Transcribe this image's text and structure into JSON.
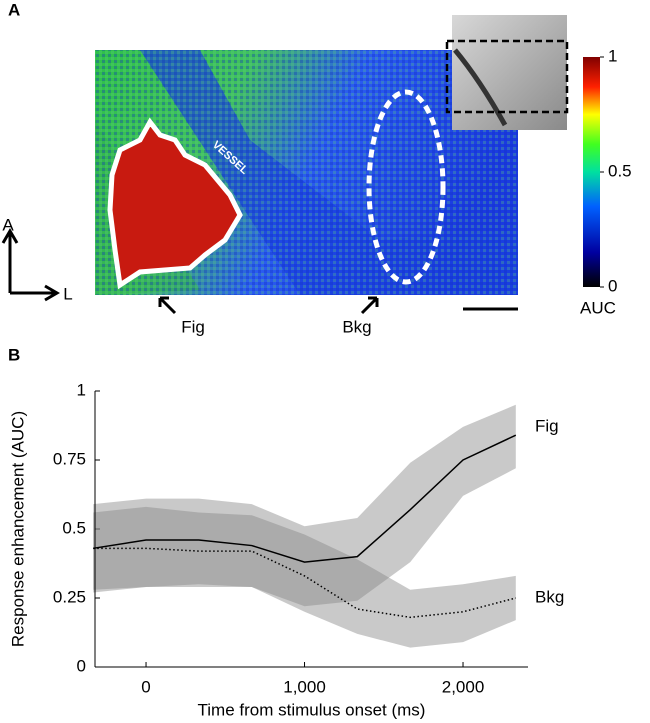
{
  "panel_labels": [
    "A",
    "B"
  ],
  "map": {
    "vessel_label": "VESSEL",
    "orientation": [
      "A",
      "L"
    ],
    "roi_labels": [
      "Fig",
      "Bkg"
    ],
    "colorbar": {
      "label": "AUC",
      "ticks": [
        0,
        0.5,
        1
      ],
      "lim": [
        0,
        1
      ]
    }
  },
  "chart_data": {
    "type": "line",
    "xlabel": "Time from stimulus onset (ms)",
    "ylabel": "Response enhancement (AUC)",
    "x": [
      -333,
      0,
      333,
      667,
      1000,
      1333,
      1667,
      2000,
      2333
    ],
    "xlim": [
      -322,
      2410
    ],
    "xticks": [
      0,
      {
        "value": 1000,
        "label": "1,000"
      },
      {
        "value": 2000,
        "label": "2,000"
      }
    ],
    "ylim": [
      0,
      1
    ],
    "yticks": [
      0,
      0.25,
      0.5,
      0.75,
      1
    ],
    "series": [
      {
        "name": "Fig",
        "color": "#000000",
        "dash": "solid",
        "values": [
          0.43,
          0.46,
          0.46,
          0.44,
          0.38,
          0.4,
          0.57,
          0.75,
          0.84
        ],
        "upper": [
          0.59,
          0.61,
          0.61,
          0.59,
          0.51,
          0.54,
          0.74,
          0.87,
          0.95
        ],
        "lower": [
          0.27,
          0.29,
          0.29,
          0.29,
          0.22,
          0.24,
          0.38,
          0.62,
          0.72
        ]
      },
      {
        "name": "Bkg",
        "color": "#000000",
        "dash": "dotted",
        "values": [
          0.43,
          0.43,
          0.42,
          0.42,
          0.33,
          0.21,
          0.18,
          0.2,
          0.25
        ],
        "upper": [
          0.56,
          0.58,
          0.56,
          0.55,
          0.48,
          0.39,
          0.28,
          0.3,
          0.33
        ],
        "lower": [
          0.28,
          0.29,
          0.3,
          0.29,
          0.2,
          0.12,
          0.07,
          0.09,
          0.17
        ]
      }
    ]
  }
}
